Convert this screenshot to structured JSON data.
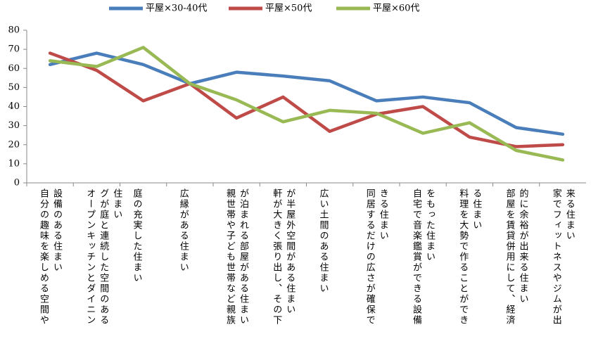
{
  "chart_data": {
    "type": "line",
    "categories": [
      "自分の趣味を楽しめる空間や設備のある住まい",
      "オープンキッチンとダイニングが庭と連続した空間のある住まい",
      "庭の充実した住まい",
      "広縁がある住まい",
      "親世帯や子ども世帯など親族が泊まれる部屋がある住まい",
      "軒が大きく張り出し、その下が半屋外空間がある住まい",
      "広い土間のある住まい",
      "同居するだけの広さが確保できる住まい",
      "自宅で音楽鑑賞ができる設備をもった住まい",
      "料理を大勢で作ることができる住まい",
      "部屋を賃貸併用にして、経済的に余裕が出来る住まい",
      "家でフィットネスやジムが出来る住まい"
    ],
    "series": [
      {
        "name": "平屋×30-40代",
        "color": "#4a7ebb",
        "values": [
          62,
          68,
          62,
          52,
          58,
          56,
          53.5,
          43,
          45,
          42,
          29,
          25.5
        ]
      },
      {
        "name": "平屋×50代",
        "color": "#be4b48",
        "values": [
          68,
          59,
          43,
          52,
          34,
          45,
          27,
          36,
          40,
          24,
          19,
          20
        ]
      },
      {
        "name": "平屋×60代",
        "color": "#98b954",
        "values": [
          64,
          61,
          71,
          52,
          43.5,
          32,
          38,
          36.5,
          26,
          31.5,
          17,
          12
        ]
      }
    ],
    "ylim": [
      0,
      80
    ],
    "yticks": [
      0,
      10,
      20,
      30,
      40,
      50,
      60,
      70,
      80
    ],
    "legend": "top"
  }
}
